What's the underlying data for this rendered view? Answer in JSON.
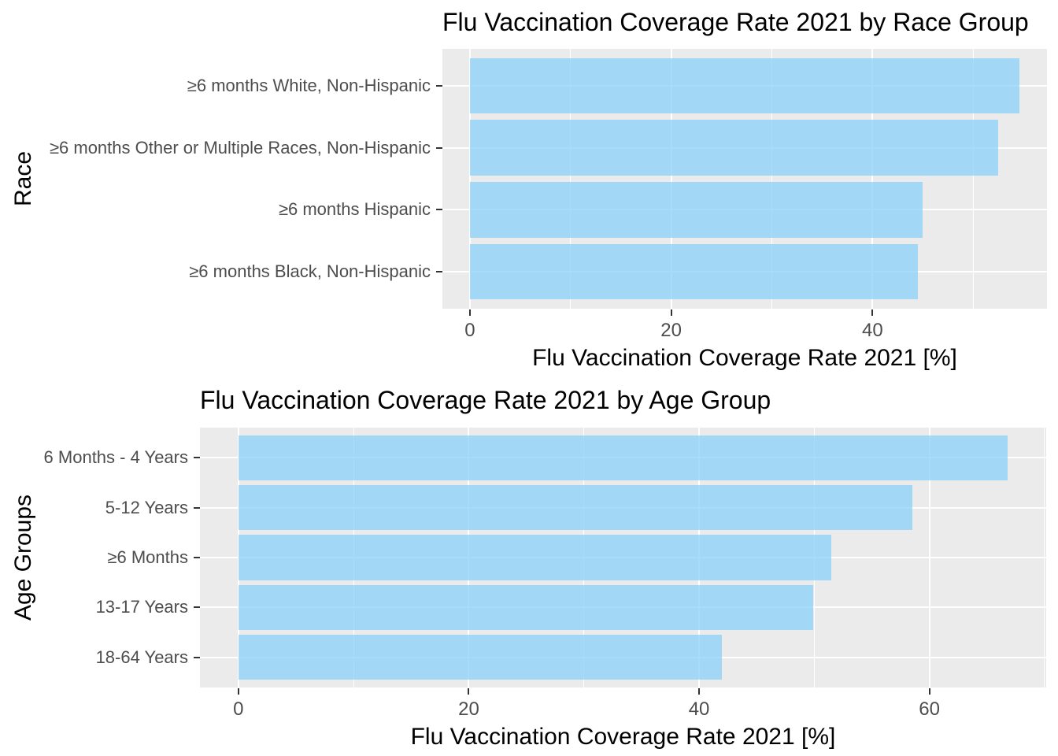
{
  "chart_data": [
    {
      "type": "bar",
      "orientation": "horizontal",
      "title": "Flu Vaccination Coverage Rate 2021 by Race Group",
      "xlabel": "Flu Vaccination Coverage Rate 2021 [%]",
      "ylabel": "Race",
      "categories": [
        "≥6 months White, Non-Hispanic",
        "≥6 months Other or Multiple Races, Non-Hispanic",
        "≥6 months Hispanic",
        "≥6 months Black, Non-Hispanic"
      ],
      "values": [
        54.6,
        52.5,
        45.0,
        44.5
      ],
      "x_major_ticks": [
        0,
        20,
        40
      ],
      "x_minor_ticks": [
        10,
        30,
        50
      ],
      "xlim": [
        -2.73,
        57.33
      ],
      "grid": true,
      "legend": "none",
      "bar_color": "#87CEFA",
      "bar_alpha": 0.72,
      "panel_bg": "#EBEBEB",
      "grid_color": "#FFFFFF",
      "tick_text_color": "#4D4D4D"
    },
    {
      "type": "bar",
      "orientation": "horizontal",
      "title": "Flu Vaccination Coverage Rate 2021 by Age Group",
      "xlabel": "Flu Vaccination Coverage Rate 2021 [%]",
      "ylabel": "Age Groups",
      "categories": [
        "6 Months - 4 Years",
        "5-12 Years",
        "≥6 Months",
        "13-17 Years",
        "18-64 Years"
      ],
      "values": [
        66.8,
        58.5,
        51.5,
        49.9,
        42.0
      ],
      "x_major_ticks": [
        0,
        20,
        40,
        60
      ],
      "x_minor_ticks": [
        10,
        30,
        50,
        70
      ],
      "xlim": [
        -3.34,
        70.14
      ],
      "grid": true,
      "legend": "none",
      "bar_color": "#87CEFA",
      "bar_alpha": 0.72,
      "panel_bg": "#EBEBEB",
      "grid_color": "#FFFFFF",
      "tick_text_color": "#4D4D4D"
    }
  ]
}
